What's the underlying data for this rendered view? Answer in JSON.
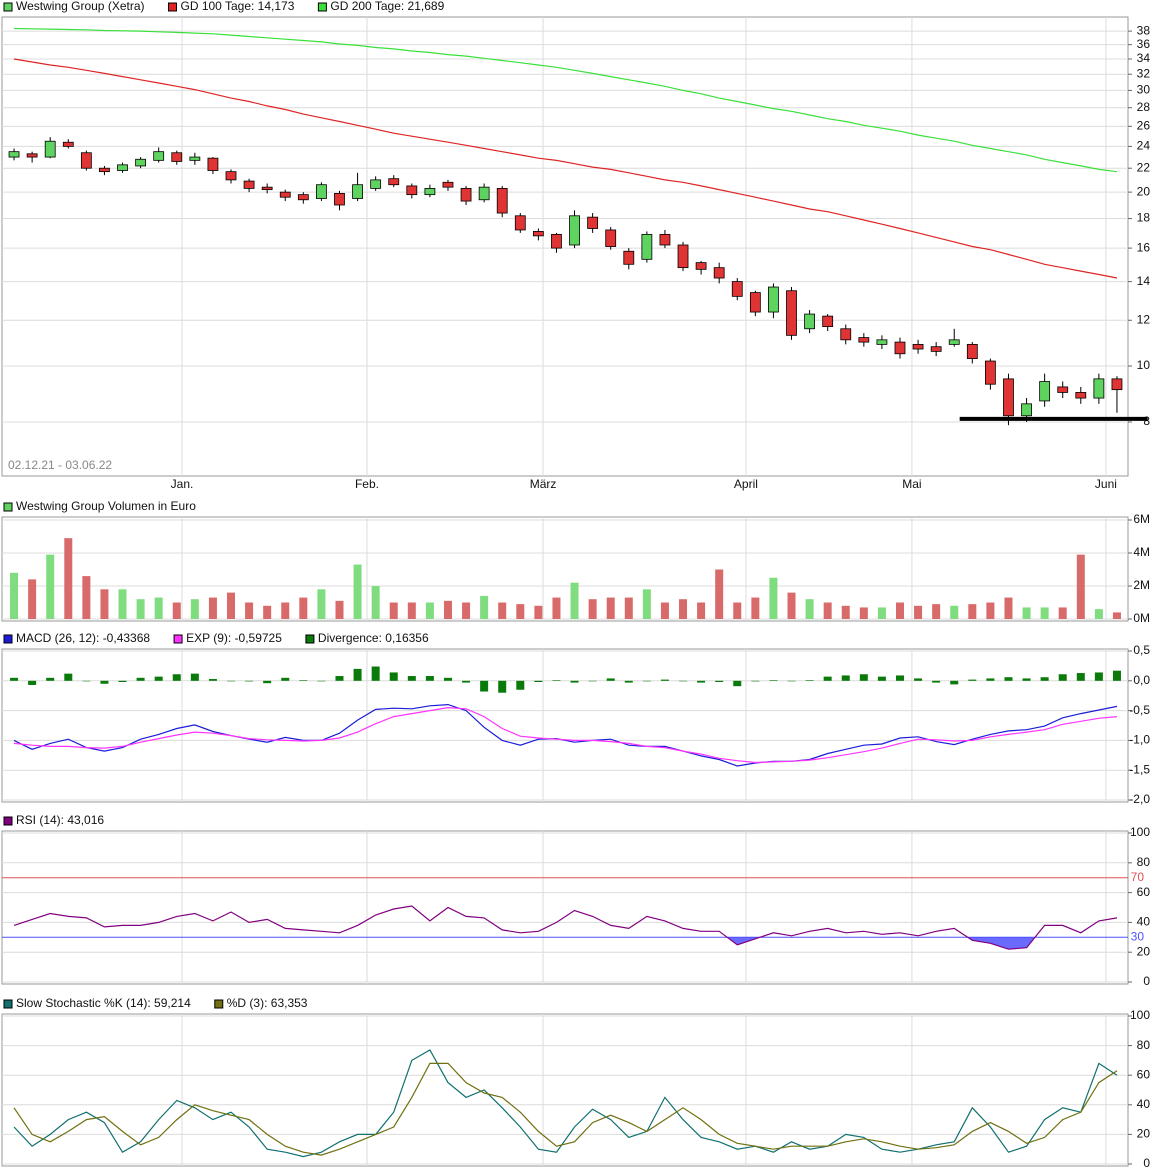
{
  "chart_data": [
    {
      "type": "candlestick",
      "date_range": "02.12.21 - 03.06.22",
      "x": [
        0,
        1,
        2,
        3,
        4,
        5,
        6,
        7,
        8,
        9,
        10,
        11,
        12,
        13,
        14,
        15,
        16,
        17,
        18,
        19,
        20,
        21,
        22,
        23,
        24,
        25,
        26,
        27,
        28,
        29,
        30,
        31,
        32,
        33,
        34,
        35,
        36,
        37,
        38,
        39,
        40,
        41,
        42,
        43,
        44,
        45,
        46,
        47,
        48,
        49,
        50,
        51,
        52,
        53,
        54,
        55,
        56,
        57,
        58,
        59,
        60,
        61
      ],
      "xlim": [
        -0.5,
        61.5
      ],
      "xticks": [
        {
          "value": 9.29,
          "label": "Jan."
        },
        {
          "value": 19.52,
          "label": "Feb."
        },
        {
          "value": 29.26,
          "label": "März"
        },
        {
          "value": 40.48,
          "label": "April"
        },
        {
          "value": 49.66,
          "label": "Mai"
        },
        {
          "value": 60.39,
          "label": "Juni"
        }
      ],
      "ylim": [
        6.45,
        40.2
      ],
      "log_scale": true,
      "yticks": [
        8,
        10,
        12,
        14,
        16,
        18,
        20,
        22,
        24,
        26,
        28,
        30,
        32,
        34,
        36,
        38
      ],
      "grid": true,
      "up_color": "#5fd35f",
      "down_color": "#e03434",
      "support_line": {
        "value": 8.1,
        "x": [
          52.3,
          62.7
        ]
      },
      "series": [
        {
          "name": "Westwing Group (Xetra)",
          "color": "#5fd35f",
          "open": [
            23.0,
            23.3,
            23.0,
            24.4,
            23.4,
            22.0,
            21.8,
            22.2,
            22.7,
            23.4,
            22.7,
            22.9,
            21.7,
            20.9,
            20.4,
            20.0,
            19.8,
            19.5,
            19.9,
            19.5,
            20.3,
            21.1,
            20.5,
            19.8,
            20.8,
            20.3,
            19.4,
            20.3,
            18.2,
            17.1,
            16.9,
            16.2,
            18.1,
            17.2,
            15.8,
            15.3,
            16.9,
            16.2,
            15.1,
            14.8,
            14.0,
            13.4,
            12.4,
            13.5,
            11.6,
            12.2,
            11.6,
            11.2,
            10.9,
            11.0,
            10.9,
            10.8,
            10.9,
            10.9,
            10.2,
            9.5,
            8.2,
            8.7,
            9.2,
            9.0,
            8.8,
            9.5
          ],
          "high": [
            23.8,
            23.5,
            24.9,
            24.7,
            23.6,
            22.2,
            22.5,
            23.0,
            23.9,
            23.6,
            23.4,
            23.0,
            21.9,
            21.1,
            20.7,
            20.2,
            20.0,
            20.8,
            20.1,
            21.6,
            21.3,
            21.4,
            20.7,
            20.6,
            21.0,
            20.5,
            20.7,
            20.5,
            18.4,
            17.3,
            17.0,
            18.6,
            18.4,
            17.4,
            16.0,
            17.1,
            17.2,
            16.4,
            15.2,
            15.1,
            14.2,
            13.5,
            13.9,
            13.7,
            12.5,
            12.3,
            11.8,
            11.4,
            11.3,
            11.2,
            11.1,
            11.0,
            11.6,
            11.0,
            10.3,
            9.7,
            8.8,
            9.7,
            9.4,
            9.2,
            9.7,
            9.6
          ],
          "low": [
            22.7,
            22.5,
            22.9,
            23.8,
            21.8,
            21.4,
            21.6,
            22.0,
            22.5,
            22.3,
            22.3,
            21.5,
            20.7,
            20.0,
            19.9,
            19.3,
            19.1,
            19.3,
            18.6,
            19.3,
            20.1,
            20.4,
            19.5,
            19.6,
            20.1,
            19.0,
            19.2,
            18.1,
            17.0,
            16.5,
            15.7,
            16.0,
            17.0,
            15.9,
            14.7,
            15.1,
            16.0,
            14.6,
            14.4,
            13.9,
            13.0,
            12.2,
            12.1,
            11.1,
            11.4,
            11.5,
            10.9,
            10.8,
            10.7,
            10.3,
            10.5,
            10.4,
            10.8,
            10.1,
            9.1,
            7.9,
            8.0,
            8.5,
            8.8,
            8.6,
            8.6,
            8.3
          ],
          "close": [
            23.5,
            23.0,
            24.5,
            24.0,
            22.0,
            21.7,
            22.3,
            22.8,
            23.5,
            22.6,
            23.0,
            21.8,
            21.0,
            20.3,
            20.2,
            19.6,
            19.4,
            20.6,
            19.0,
            20.6,
            21.0,
            20.6,
            19.8,
            20.3,
            20.4,
            19.3,
            20.4,
            18.4,
            17.2,
            16.8,
            16.0,
            18.2,
            17.3,
            16.1,
            15.0,
            16.9,
            16.2,
            14.8,
            14.7,
            14.2,
            13.2,
            12.4,
            13.7,
            11.3,
            12.3,
            11.7,
            11.1,
            11.0,
            11.1,
            10.5,
            10.7,
            10.6,
            11.1,
            10.3,
            9.3,
            8.2,
            8.6,
            9.4,
            9.0,
            8.8,
            9.5,
            9.1
          ]
        },
        {
          "name": "GD 100 Tage: 14,173",
          "color": "#e02424",
          "values": [
            34.0,
            33.6,
            33.2,
            32.9,
            32.5,
            32.1,
            31.7,
            31.3,
            30.9,
            30.5,
            30.1,
            29.6,
            29.1,
            28.7,
            28.2,
            27.8,
            27.3,
            26.9,
            26.5,
            26.1,
            25.7,
            25.3,
            25.0,
            24.7,
            24.4,
            24.1,
            23.8,
            23.5,
            23.2,
            22.9,
            22.7,
            22.4,
            22.1,
            21.9,
            21.6,
            21.3,
            21.0,
            20.8,
            20.5,
            20.2,
            19.9,
            19.6,
            19.3,
            19.0,
            18.7,
            18.5,
            18.2,
            17.9,
            17.6,
            17.3,
            17.0,
            16.7,
            16.4,
            16.1,
            15.9,
            15.6,
            15.3,
            15.0,
            14.8,
            14.6,
            14.4,
            14.2
          ]
        },
        {
          "name": "GD 200 Tage: 21,689",
          "color": "#3ae03a",
          "values": [
            38.4,
            38.35,
            38.3,
            38.25,
            38.2,
            38.1,
            38.05,
            38.0,
            37.9,
            37.8,
            37.7,
            37.6,
            37.4,
            37.2,
            37.0,
            36.8,
            36.6,
            36.4,
            36.1,
            35.9,
            35.6,
            35.4,
            35.1,
            34.9,
            34.6,
            34.4,
            34.1,
            33.8,
            33.5,
            33.2,
            32.9,
            32.5,
            32.1,
            31.7,
            31.3,
            30.9,
            30.5,
            30.0,
            29.6,
            29.1,
            28.7,
            28.3,
            27.9,
            27.6,
            27.2,
            26.8,
            26.5,
            26.1,
            25.8,
            25.5,
            25.1,
            24.8,
            24.5,
            24.1,
            23.8,
            23.5,
            23.2,
            22.8,
            22.5,
            22.2,
            21.9,
            21.7
          ]
        }
      ]
    },
    {
      "type": "bar",
      "ylim": [
        0,
        6
      ],
      "yticks": [
        {
          "value": 0,
          "label": "0M"
        },
        {
          "value": 2,
          "label": "2M"
        },
        {
          "value": 4,
          "label": "4M"
        },
        {
          "value": 6,
          "label": "6M"
        }
      ],
      "grid": true,
      "up_color": "#7fdc7f",
      "down_color": "#d86a6a",
      "series": [
        {
          "name": "Westwing Group Volumen in Euro",
          "color": "#5fd35f",
          "values": [
            2.8,
            2.4,
            3.9,
            4.9,
            2.6,
            1.8,
            1.8,
            1.2,
            1.3,
            1.0,
            1.2,
            1.3,
            1.6,
            1.0,
            0.8,
            1.0,
            1.3,
            1.8,
            1.1,
            3.3,
            2.0,
            1.0,
            1.0,
            1.0,
            1.1,
            1.0,
            1.4,
            1.0,
            0.9,
            0.8,
            1.3,
            2.2,
            1.2,
            1.3,
            1.3,
            1.8,
            1.0,
            1.2,
            1.0,
            3.0,
            1.0,
            1.3,
            2.5,
            1.6,
            1.2,
            1.0,
            0.8,
            0.7,
            0.7,
            1.0,
            0.8,
            0.9,
            0.8,
            0.9,
            1.0,
            1.3,
            0.7,
            0.7,
            0.7,
            3.9,
            0.6,
            0.4
          ]
        }
      ]
    },
    {
      "type": "macd",
      "ylim": [
        -2,
        0.5
      ],
      "yticks": [
        {
          "value": -2,
          "label": "-2,0"
        },
        {
          "value": -1.5,
          "label": "-1,5"
        },
        {
          "value": -1,
          "label": "-1,0"
        },
        {
          "value": -0.5,
          "label": "-0,5"
        },
        {
          "value": 0,
          "label": "0,0"
        },
        {
          "value": 0.5,
          "label": "0,5"
        }
      ],
      "grid": true,
      "series": [
        {
          "name": "MACD (26, 12): -0,43368",
          "color": "#1c1cd8",
          "kind": "line",
          "values": [
            -1.0,
            -1.15,
            -1.05,
            -0.98,
            -1.12,
            -1.18,
            -1.12,
            -0.98,
            -0.9,
            -0.8,
            -0.74,
            -0.85,
            -0.92,
            -0.98,
            -1.03,
            -0.95,
            -1.0,
            -1.0,
            -0.88,
            -0.66,
            -0.48,
            -0.46,
            -0.47,
            -0.42,
            -0.4,
            -0.5,
            -0.78,
            -1.0,
            -1.08,
            -0.98,
            -0.97,
            -1.03,
            -1.0,
            -0.98,
            -1.08,
            -1.1,
            -1.1,
            -1.18,
            -1.26,
            -1.32,
            -1.43,
            -1.38,
            -1.35,
            -1.35,
            -1.32,
            -1.22,
            -1.15,
            -1.08,
            -1.06,
            -0.96,
            -0.94,
            -1.02,
            -1.07,
            -0.98,
            -0.9,
            -0.84,
            -0.82,
            -0.76,
            -0.62,
            -0.55,
            -0.49,
            -0.43
          ]
        },
        {
          "name": "EXP (9): -0,59725",
          "color": "#ff33ff",
          "kind": "line",
          "values": [
            -1.05,
            -1.08,
            -1.1,
            -1.1,
            -1.12,
            -1.13,
            -1.1,
            -1.03,
            -0.97,
            -0.91,
            -0.86,
            -0.88,
            -0.92,
            -0.97,
            -0.99,
            -1.0,
            -1.01,
            -1.0,
            -0.96,
            -0.86,
            -0.72,
            -0.6,
            -0.55,
            -0.5,
            -0.45,
            -0.47,
            -0.6,
            -0.8,
            -0.93,
            -0.96,
            -0.98,
            -1.0,
            -1.0,
            -1.02,
            -1.05,
            -1.1,
            -1.12,
            -1.18,
            -1.23,
            -1.3,
            -1.34,
            -1.37,
            -1.36,
            -1.35,
            -1.33,
            -1.29,
            -1.24,
            -1.19,
            -1.13,
            -1.05,
            -0.98,
            -0.99,
            -1.01,
            -1.0,
            -0.94,
            -0.9,
            -0.86,
            -0.82,
            -0.73,
            -0.68,
            -0.63,
            -0.6
          ]
        },
        {
          "name": "Divergence: 0,16356",
          "color": "#0a7a0a",
          "kind": "bar",
          "values": [
            0.05,
            -0.07,
            0.05,
            0.12,
            0.0,
            -0.05,
            -0.02,
            0.05,
            0.07,
            0.11,
            0.12,
            0.03,
            0.0,
            -0.01,
            -0.04,
            0.05,
            0.01,
            0.0,
            0.08,
            0.2,
            0.24,
            0.14,
            0.08,
            0.08,
            0.05,
            -0.03,
            -0.18,
            -0.2,
            -0.15,
            -0.02,
            0.01,
            -0.03,
            0.0,
            0.04,
            -0.03,
            0.0,
            0.02,
            0.0,
            -0.03,
            -0.02,
            -0.09,
            -0.01,
            0.01,
            0.0,
            0.01,
            0.07,
            0.09,
            0.11,
            0.07,
            0.09,
            0.04,
            -0.03,
            -0.06,
            0.02,
            0.04,
            0.06,
            0.04,
            0.06,
            0.11,
            0.13,
            0.14,
            0.17
          ]
        }
      ]
    },
    {
      "type": "line",
      "ylim": [
        0,
        100
      ],
      "yticks": [
        0,
        20,
        40,
        60,
        80,
        100
      ],
      "grid": true,
      "reference_lines": [
        {
          "value": 70,
          "label": "70",
          "color": "#e05050"
        },
        {
          "value": 30,
          "label": "30",
          "color": "#5050ff"
        }
      ],
      "fill_below": {
        "value": 30,
        "color": "#6a6aff"
      },
      "series": [
        {
          "name": "RSI (14): 43,016",
          "color": "#800080",
          "values": [
            38,
            42,
            46,
            44,
            43,
            37,
            38,
            38,
            40,
            44,
            46,
            41,
            47,
            40,
            42,
            36,
            35,
            34,
            33,
            38,
            45,
            49,
            51,
            41,
            50,
            44,
            43,
            35,
            33,
            34,
            40,
            48,
            44,
            38,
            36,
            44,
            41,
            36,
            34,
            34,
            25,
            29,
            33,
            31,
            34,
            36,
            33,
            34,
            32,
            33,
            31,
            34,
            36,
            28,
            26,
            22,
            23,
            38,
            38,
            33,
            41,
            43
          ]
        }
      ]
    },
    {
      "type": "line",
      "ylim": [
        0,
        100
      ],
      "yticks": [
        0,
        20,
        40,
        60,
        80,
        100
      ],
      "grid": true,
      "series": [
        {
          "name": "Slow Stochastic %K (14): 59,214",
          "color": "#107070",
          "values": [
            25,
            12,
            20,
            30,
            35,
            28,
            8,
            15,
            30,
            43,
            38,
            30,
            35,
            25,
            10,
            8,
            5,
            8,
            15,
            20,
            20,
            35,
            70,
            77,
            55,
            45,
            50,
            38,
            25,
            10,
            8,
            25,
            37,
            30,
            18,
            22,
            45,
            30,
            18,
            15,
            10,
            12,
            8,
            15,
            10,
            12,
            20,
            18,
            10,
            8,
            10,
            13,
            15,
            38,
            25,
            8,
            12,
            30,
            38,
            35,
            68,
            60
          ]
        },
        {
          "name": "%D (3): 63,353",
          "color": "#707010",
          "values": [
            38,
            20,
            15,
            22,
            30,
            32,
            22,
            13,
            18,
            30,
            40,
            36,
            33,
            30,
            20,
            12,
            8,
            6,
            10,
            15,
            20,
            25,
            45,
            68,
            68,
            55,
            48,
            45,
            35,
            22,
            12,
            15,
            28,
            33,
            28,
            22,
            30,
            38,
            30,
            20,
            14,
            12,
            10,
            12,
            12,
            12,
            15,
            17,
            15,
            12,
            10,
            11,
            13,
            22,
            28,
            22,
            14,
            18,
            30,
            35,
            55,
            63
          ]
        }
      ]
    }
  ]
}
